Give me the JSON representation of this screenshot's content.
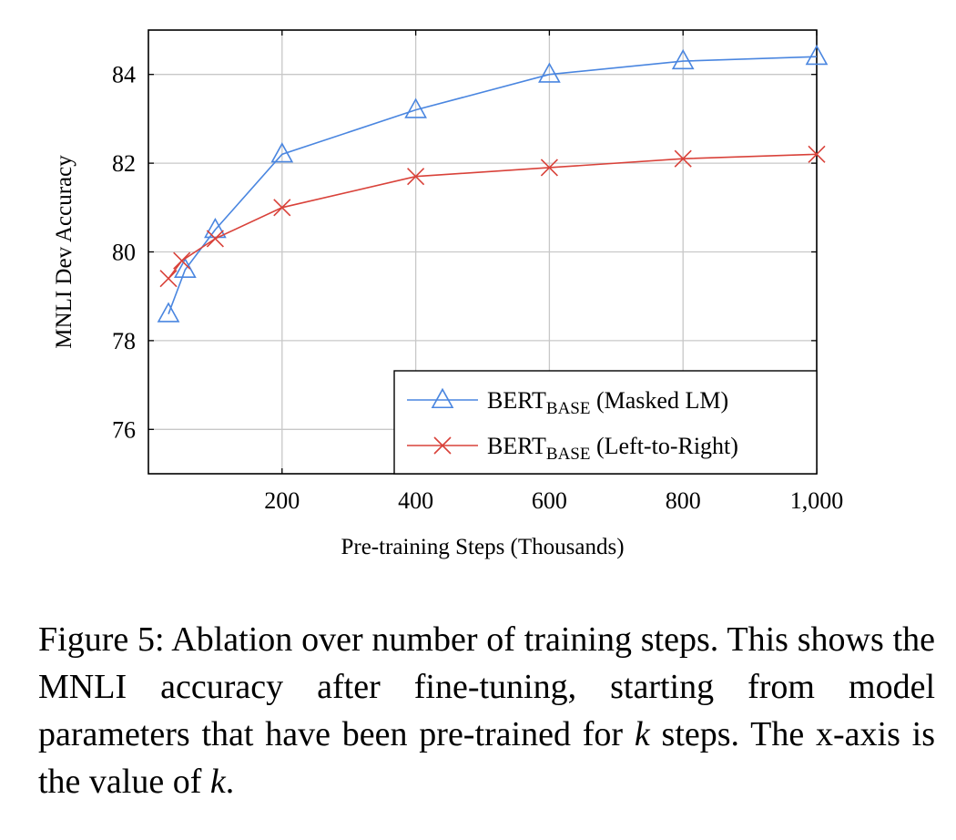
{
  "chart_data": {
    "type": "line",
    "title": "",
    "xlabel": "Pre-training Steps (Thousands)",
    "ylabel": "MNLI Dev Accuracy",
    "xlim": [
      0,
      1000
    ],
    "ylim": [
      75,
      85
    ],
    "xticks": [
      200,
      400,
      600,
      800,
      1000
    ],
    "xtick_labels": [
      "200",
      "400",
      "600",
      "800",
      "1,000"
    ],
    "yticks": [
      76,
      78,
      80,
      82,
      84
    ],
    "ytick_labels": [
      "76",
      "78",
      "80",
      "82",
      "84"
    ],
    "grid": true,
    "legend_position": "bottom-right",
    "series": [
      {
        "name": "BERT",
        "subscript": "BASE",
        "suffix": " (Masked LM)",
        "marker": "triangle",
        "color": "#4a86e0",
        "x": [
          30,
          55,
          100,
          200,
          400,
          600,
          800,
          1000
        ],
        "y": [
          78.6,
          79.6,
          80.5,
          82.2,
          83.2,
          84.0,
          84.3,
          84.4
        ]
      },
      {
        "name": "BERT",
        "subscript": "BASE",
        "suffix": " (Left-to-Right)",
        "marker": "cross",
        "color": "#d9423a",
        "x": [
          30,
          50,
          100,
          200,
          400,
          600,
          800,
          1000
        ],
        "y": [
          79.4,
          79.8,
          80.3,
          81.0,
          81.7,
          81.9,
          82.1,
          82.2
        ]
      }
    ]
  },
  "caption": {
    "lead": "Figure 5: Ablation over number of training steps. This shows the MNLI accuracy after fine-tuning, starting from model parameters that have been pre-trained for ",
    "k1": "k",
    "middle": " steps. The x-axis is the value of ",
    "k2": "k",
    "end": "."
  }
}
